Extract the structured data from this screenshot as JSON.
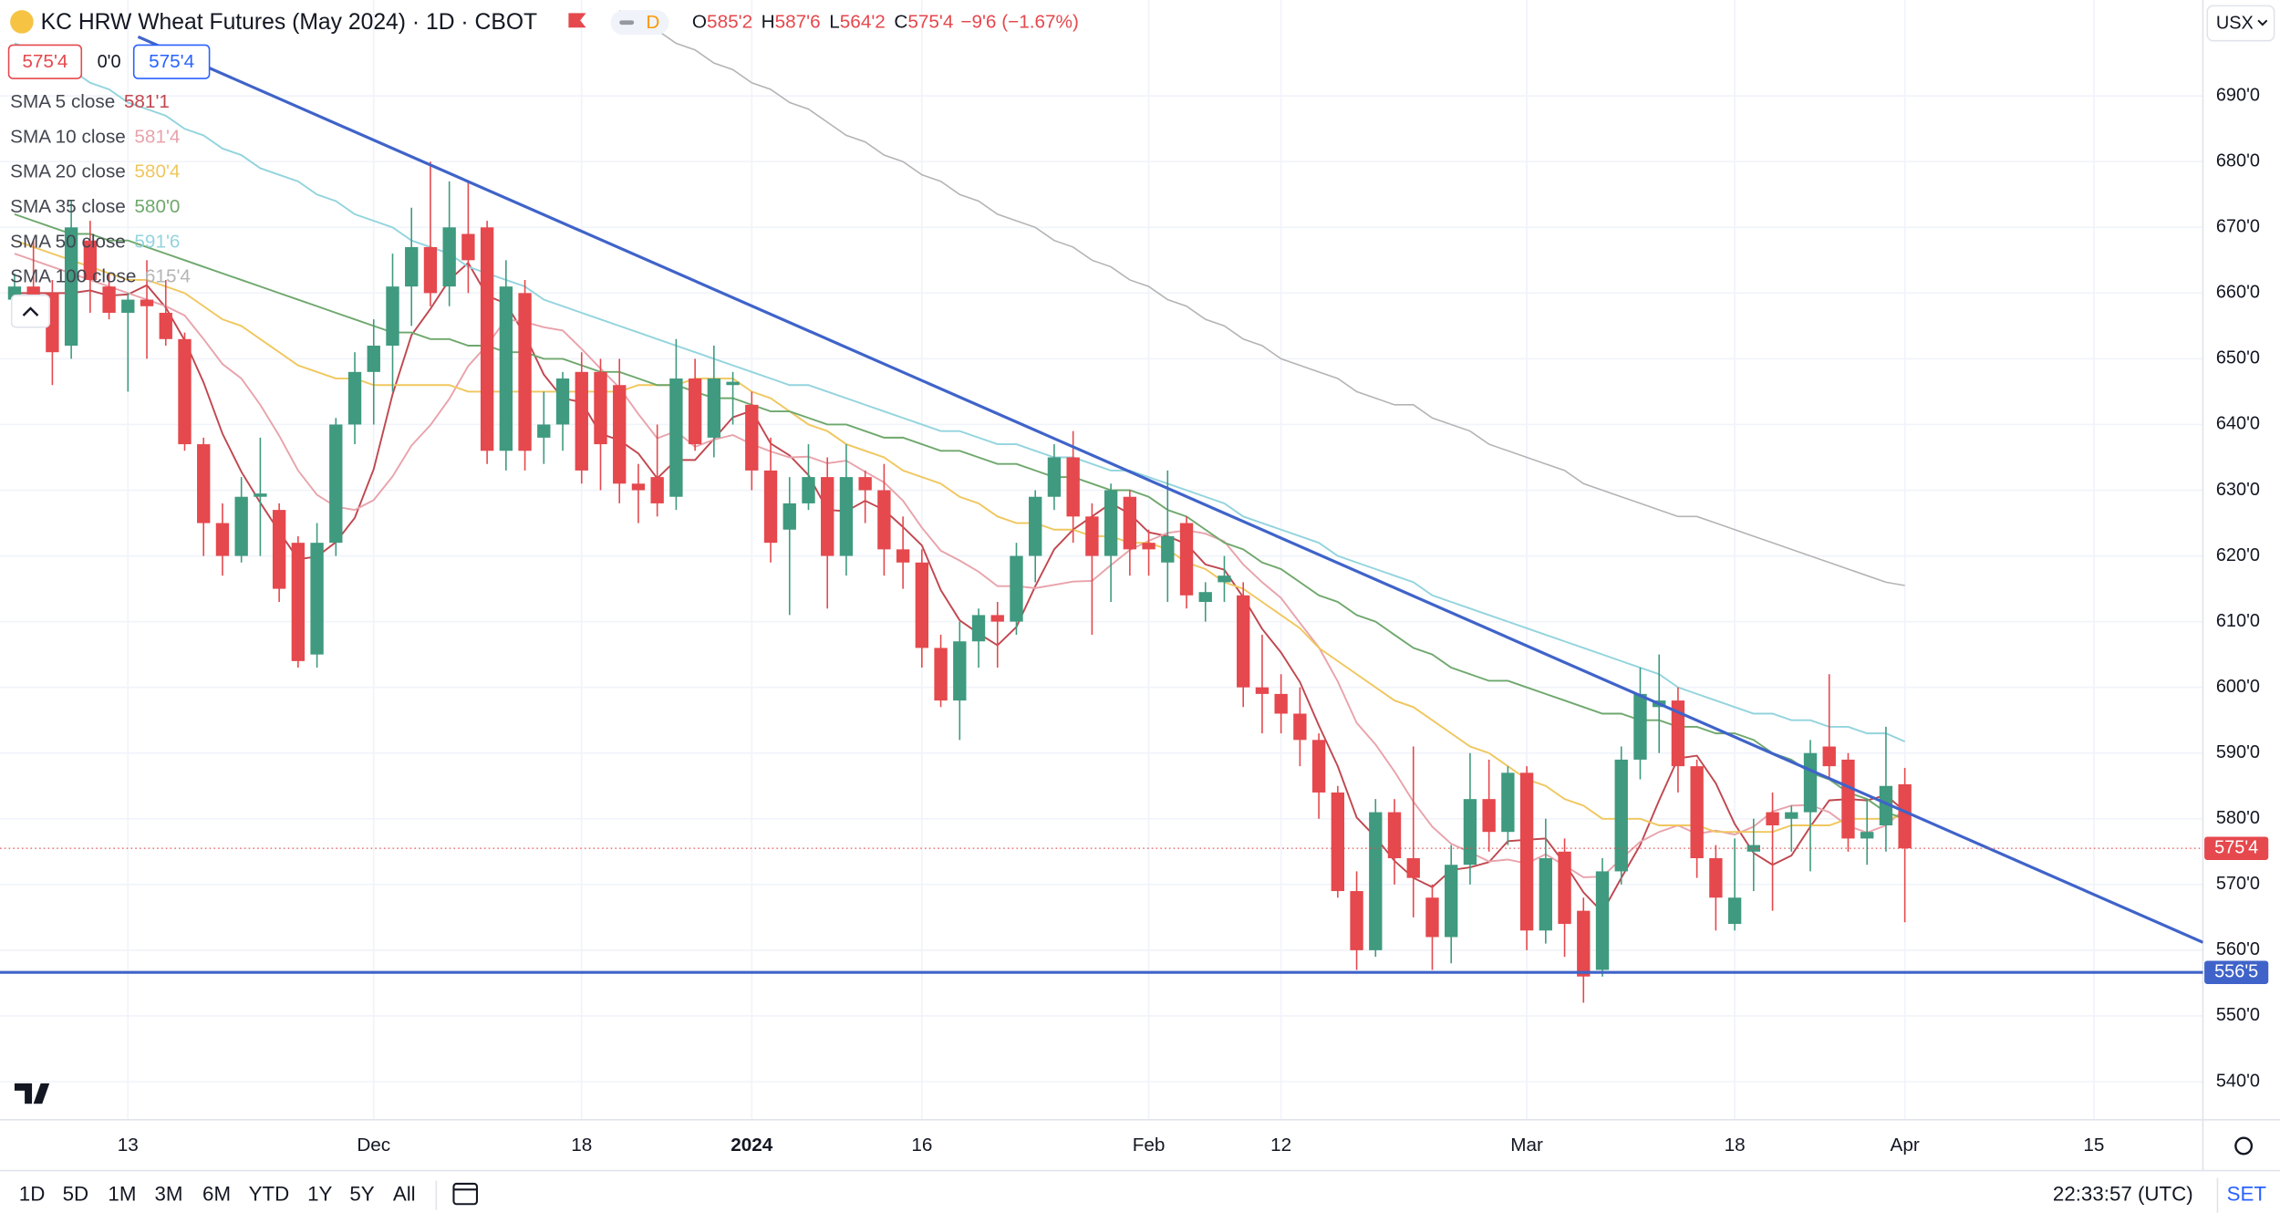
{
  "header": {
    "title": "KC HRW Wheat Futures (May 2024) · 1D · CBOT",
    "flag": "D",
    "ohlc": [
      {
        "key": "O",
        "value": "585'2"
      },
      {
        "key": "H",
        "value": "587'6"
      },
      {
        "key": "L",
        "value": "564'2"
      },
      {
        "key": "C",
        "value": "575'4"
      }
    ],
    "change": "−9'6 (−1.67%)",
    "boxes": [
      "575'4",
      "0'0",
      "575'4"
    ],
    "currency": "USX"
  },
  "toolbar": {
    "ranges": [
      "1D",
      "5D",
      "1M",
      "3M",
      "6M",
      "YTD",
      "1Y",
      "5Y",
      "All"
    ],
    "time": "22:33:57 (UTC)",
    "set": "SET"
  },
  "chart_data": {
    "type": "candlestick",
    "up_color": "#3f9a7f",
    "down_color": "#e5484d",
    "grid": true,
    "categories": [
      null,
      null,
      null,
      null,
      null,
      null,
      "13",
      null,
      null,
      null,
      null,
      null,
      null,
      null,
      null,
      null,
      null,
      null,
      null,
      "Dec",
      null,
      null,
      null,
      null,
      null,
      null,
      null,
      null,
      null,
      null,
      "18",
      null,
      null,
      null,
      null,
      null,
      null,
      null,
      null,
      "2024",
      null,
      null,
      null,
      null,
      null,
      null,
      null,
      null,
      "16",
      null,
      null,
      null,
      null,
      null,
      null,
      null,
      null,
      null,
      null,
      null,
      "Feb",
      null,
      null,
      null,
      null,
      null,
      null,
      "12",
      null,
      null,
      null,
      null,
      null,
      null,
      null,
      null,
      null,
      null,
      null,
      null,
      "Mar",
      null,
      null,
      null,
      null,
      null,
      null,
      null,
      null,
      null,
      null,
      "18",
      null,
      null,
      null,
      null,
      null,
      null,
      null,
      null,
      "Apr",
      null,
      null,
      null,
      null,
      null,
      null,
      null,
      null,
      null,
      "15"
    ],
    "open": [
      659,
      661,
      660,
      652,
      668,
      661,
      657,
      659,
      657,
      653,
      637,
      625,
      620,
      629,
      627,
      622,
      605,
      622,
      640,
      648,
      652,
      661,
      667,
      661,
      669,
      670,
      636,
      660,
      638,
      640,
      648,
      648,
      646,
      631,
      632,
      629,
      647,
      638,
      646,
      643,
      633,
      624,
      628,
      632,
      620,
      632,
      630,
      621,
      619,
      606,
      598,
      607,
      611,
      610,
      620,
      629,
      635,
      626,
      620,
      629,
      622,
      619,
      625,
      613,
      616,
      614,
      600,
      599,
      596,
      592,
      584,
      569,
      560,
      581,
      574,
      568,
      562,
      573,
      583,
      578,
      587,
      563,
      575,
      566,
      557,
      572,
      589,
      597,
      598,
      588,
      574,
      564,
      575,
      581,
      580,
      581,
      591,
      589,
      577,
      579,
      585.25,
      null,
      null,
      null,
      null,
      null,
      null,
      null,
      null,
      null,
      null
    ],
    "high": [
      663,
      668,
      662,
      674,
      671,
      663,
      660,
      665,
      662,
      654,
      638,
      628,
      632,
      638,
      628,
      623,
      625,
      641,
      651,
      656,
      666,
      673,
      680,
      677,
      677,
      671,
      665,
      662,
      645,
      648,
      651,
      650,
      650,
      634,
      640,
      653,
      650,
      652,
      648,
      645,
      638,
      632,
      637,
      635,
      637,
      633,
      634,
      626,
      621,
      608,
      610,
      612,
      613,
      622,
      630,
      637,
      639,
      628,
      631,
      630,
      624,
      633,
      626,
      616,
      620,
      616,
      608,
      602,
      600,
      593,
      585,
      572,
      583,
      583,
      591,
      570,
      576,
      590,
      589,
      588,
      588,
      580,
      577,
      568,
      574,
      591,
      603,
      605,
      600,
      589,
      576,
      577,
      580,
      584,
      582,
      592,
      602,
      590,
      583,
      594,
      587.75,
      null,
      null,
      null,
      null,
      null,
      null,
      null,
      null,
      null,
      null
    ],
    "low": [
      659,
      657,
      646,
      650,
      657,
      656,
      645,
      650,
      652,
      636,
      620,
      617,
      619,
      620,
      613,
      603,
      603,
      620,
      637,
      640,
      645,
      655,
      658,
      658,
      660,
      634,
      633,
      633,
      634,
      636,
      631,
      630,
      628,
      625,
      626,
      627,
      636,
      635,
      640,
      630,
      619,
      611,
      627,
      612,
      617,
      625,
      617,
      615,
      603,
      597,
      592,
      603,
      603,
      608,
      616,
      627,
      622,
      608,
      613,
      617,
      617,
      613,
      612,
      610,
      613,
      597,
      593,
      593,
      588,
      580,
      568,
      557,
      559,
      570,
      565,
      557,
      558,
      570,
      575,
      576,
      560,
      561,
      559,
      552,
      556,
      570,
      586,
      590,
      584,
      571,
      563,
      563,
      569,
      566,
      575,
      572,
      586,
      575,
      573,
      575,
      564.25,
      null,
      null,
      null,
      null,
      null,
      null,
      null,
      null,
      null,
      null
    ],
    "close": [
      661,
      658,
      651,
      670,
      662,
      657,
      659,
      658,
      653,
      637,
      625,
      620,
      629,
      629.5,
      615,
      604,
      622,
      640,
      648,
      652,
      661,
      667,
      660,
      670,
      665,
      636,
      661,
      636,
      640,
      647,
      633,
      637,
      631,
      630,
      628,
      647,
      637,
      647,
      646.5,
      633,
      622,
      628,
      632,
      620,
      632,
      630,
      621,
      619,
      606,
      598,
      607,
      611,
      610,
      620,
      629,
      635,
      626,
      620,
      630,
      621,
      621,
      623,
      614,
      614.5,
      617,
      600,
      599,
      596,
      592,
      584,
      569,
      560,
      581,
      574,
      571,
      562,
      573,
      583,
      578,
      587,
      563,
      574,
      564,
      556,
      572,
      589,
      599,
      598,
      588,
      574,
      568,
      568,
      576,
      579,
      581,
      590,
      588,
      577,
      578,
      585,
      575.5,
      null,
      null,
      null,
      null,
      null,
      null,
      null,
      null,
      null,
      null
    ],
    "series": [
      {
        "name": "SMA 5 close",
        "color": "#c0474f",
        "value_label": "581'1",
        "values": [
          660,
          660,
          660,
          660,
          660.4,
          659.6,
          659.8,
          661.2,
          657.8,
          652.8,
          646.4,
          638.6,
          632.8,
          628.1,
          623.7,
          619.5,
          619.9,
          622.1,
          625.8,
          633.2,
          644.6,
          653.6,
          657.6,
          662,
          664.6,
          659.6,
          658.4,
          653.6,
          647.6,
          644,
          643.4,
          638.6,
          637.6,
          635.6,
          631.8,
          634.6,
          634.6,
          637.8,
          641.1,
          642.1,
          637.1,
          635.3,
          632.3,
          627,
          626.8,
          628.4,
          627,
          624.4,
          621.6,
          614.8,
          610.2,
          608.2,
          606.4,
          609.2,
          615.4,
          621,
          624,
          626,
          628,
          626.4,
          623.6,
          623,
          621.8,
          618.7,
          617.9,
          613.7,
          608.9,
          605.3,
          600.8,
          594.2,
          588,
          580.2,
          577.2,
          573.6,
          571,
          569.6,
          572.2,
          572.6,
          573.4,
          576.6,
          576.8,
          577,
          573.2,
          568.8,
          565.8,
          571,
          576,
          582.8,
          589.2,
          589.6,
          585.4,
          579.2,
          574.8,
          573,
          574.4,
          578.8,
          582.8,
          583,
          582.8,
          583.6,
          581.125,
          null,
          null,
          null,
          null,
          null,
          null,
          null,
          null,
          null,
          null
        ]
      },
      {
        "name": "SMA 10 close",
        "color": "#e8a3ab",
        "value_label": "581'4",
        "values": [
          666,
          665,
          664,
          663,
          662,
          661,
          660,
          659,
          658,
          656.6,
          653,
          649.2,
          647,
          643,
          638.3,
          633,
          629.3,
          627.5,
          627,
          628.5,
          632.1,
          636.8,
          639.9,
          643.9,
          648.9,
          652.1,
          656,
          655.6,
          654.8,
          654.3,
          651.5,
          648.5,
          645.6,
          641.6,
          637.9,
          639,
          636.6,
          637.7,
          638.4,
          637,
          635.9,
          635,
          635.1,
          634.1,
          634.5,
          632.8,
          631.2,
          628.4,
          624.3,
          620.8,
          619.3,
          617.6,
          615.4,
          615.4,
          615.1,
          615.6,
          616.1,
          616.2,
          618.6,
          620.9,
          622.3,
          623.5,
          623.9,
          623.4,
          622.2,
          618.7,
          616,
          613.6,
          609.8,
          606.1,
          600.9,
          594.6,
          591.3,
          587.2,
          582.6,
          578.8,
          576.2,
          574.9,
          573.5,
          573.8,
          573.2,
          574.6,
          572.9,
          571.1,
          571.2,
          573.9,
          576.5,
          578,
          579,
          577.7,
          578.2,
          577.6,
          578.8,
          581.1,
          582,
          582.1,
          581,
          578.9,
          577.9,
          579,
          581.5,
          null,
          null,
          null,
          null,
          null,
          null,
          null,
          null,
          null,
          null
        ]
      },
      {
        "name": "SMA 20 close",
        "color": "#f0c75e",
        "value_label": "580'4",
        "values": [
          668,
          667,
          666,
          665,
          664,
          663,
          662,
          662,
          661,
          660,
          658,
          656,
          655,
          653,
          651,
          649,
          648,
          647,
          647,
          646,
          646,
          646,
          646,
          646,
          645,
          645,
          645,
          645,
          645,
          645,
          645,
          645,
          645,
          646,
          646,
          646,
          647,
          647,
          647,
          645,
          644,
          642,
          640,
          639,
          637,
          636,
          635,
          633,
          632,
          631,
          629,
          628,
          626,
          625,
          625,
          624,
          624,
          623,
          623,
          622,
          622,
          621,
          619,
          618,
          616,
          615,
          613,
          611,
          609,
          606,
          604,
          602,
          600,
          598,
          597,
          595,
          593,
          591,
          590,
          588,
          586,
          585,
          583,
          582,
          580,
          580,
          580,
          579,
          579,
          579,
          578,
          578,
          578,
          578,
          579,
          579,
          579,
          580,
          580,
          580,
          580.5,
          null,
          null,
          null,
          null,
          null,
          null,
          null,
          null,
          null,
          null
        ]
      },
      {
        "name": "SMA 35 close",
        "color": "#6fa86d",
        "value_label": "580'0",
        "values": [
          672,
          671,
          670,
          669,
          669,
          668,
          668,
          667,
          666,
          665,
          664,
          663,
          662,
          661,
          660,
          659,
          658,
          657,
          656,
          655,
          654,
          654,
          653,
          653,
          652,
          652,
          651,
          651,
          650,
          650,
          649,
          648,
          648,
          647,
          646,
          646,
          645,
          644,
          644,
          643,
          642,
          642,
          641,
          640,
          640,
          639,
          638,
          638,
          637,
          636,
          636,
          635,
          634,
          634,
          633,
          632,
          632,
          631,
          630,
          630,
          629,
          627,
          626,
          624,
          622,
          621,
          619,
          618,
          616,
          614,
          613,
          611,
          610,
          608,
          606,
          605,
          603,
          602,
          601,
          601,
          600,
          599,
          598,
          597,
          596,
          596,
          595,
          595,
          594,
          594,
          593,
          593,
          592,
          590,
          589,
          587,
          586,
          584,
          583,
          581,
          580,
          null,
          null,
          null,
          null,
          null,
          null,
          null,
          null,
          null,
          null
        ]
      },
      {
        "name": "SMA 50 close",
        "color": "#93d4dd",
        "value_label": "591'6",
        "values": [
          698,
          697,
          695,
          694,
          692,
          691,
          689,
          688,
          687,
          685,
          684,
          682,
          681,
          679,
          678,
          677,
          675,
          674,
          672,
          671,
          670,
          668,
          667,
          666,
          664,
          663,
          662,
          661,
          659,
          658,
          657,
          656,
          655,
          654,
          653,
          652,
          651,
          650,
          649,
          648,
          647,
          646,
          646,
          645,
          644,
          643,
          642,
          641,
          640,
          639,
          639,
          638,
          637,
          637,
          636,
          635,
          635,
          634,
          633,
          633,
          632,
          631,
          630,
          629,
          628,
          626,
          625,
          624,
          623,
          622,
          620,
          619,
          618,
          617,
          616,
          614,
          613,
          612,
          611,
          610,
          609,
          608,
          607,
          606,
          605,
          604,
          603,
          602,
          600,
          599,
          598,
          597,
          596,
          596,
          595,
          595,
          594,
          594,
          593,
          593,
          591.75,
          null,
          null,
          null,
          null,
          null,
          null,
          null,
          null,
          null,
          null
        ]
      },
      {
        "name": "SMA 100 close",
        "color": "#b4b4b4",
        "value_label": "615'4",
        "values": [
          null,
          null,
          null,
          null,
          null,
          null,
          null,
          null,
          null,
          null,
          null,
          null,
          null,
          null,
          null,
          null,
          null,
          null,
          null,
          null,
          null,
          null,
          null,
          null,
          null,
          null,
          null,
          null,
          null,
          null,
          null,
          null,
          703,
          701,
          700,
          698,
          697,
          695,
          694,
          692,
          691,
          689,
          688,
          686,
          684,
          683,
          681,
          680,
          678,
          677,
          675,
          674,
          672,
          671,
          670,
          668,
          667,
          665,
          664,
          662,
          661,
          659,
          658,
          656,
          655,
          653,
          652,
          650,
          649,
          648,
          647,
          645,
          644,
          643,
          643,
          641,
          640,
          639,
          637,
          636,
          635,
          634,
          633,
          631,
          630,
          629,
          628,
          627,
          626,
          626,
          625,
          624,
          623,
          622,
          621,
          620,
          619,
          618,
          617,
          616,
          615.5,
          null,
          null,
          null,
          null,
          null,
          null,
          null,
          null,
          null,
          null
        ]
      }
    ],
    "ylim": [
      534.2,
      704.6
    ],
    "yticks": [
      {
        "value": 540,
        "label": "540'0"
      },
      {
        "value": 550,
        "label": "550'0"
      },
      {
        "value": 560,
        "label": "560'0"
      },
      {
        "value": 570,
        "label": "570'0"
      },
      {
        "value": 580,
        "label": "580'0"
      },
      {
        "value": 590,
        "label": "590'0"
      },
      {
        "value": 600,
        "label": "600'0"
      },
      {
        "value": 610,
        "label": "610'0"
      },
      {
        "value": 620,
        "label": "620'0"
      },
      {
        "value": 630,
        "label": "630'0"
      },
      {
        "value": 640,
        "label": "640'0"
      },
      {
        "value": 650,
        "label": "650'0"
      },
      {
        "value": 660,
        "label": "660'0"
      },
      {
        "value": 670,
        "label": "670'0"
      },
      {
        "value": 680,
        "label": "680'0"
      },
      {
        "value": 690,
        "label": "690'0"
      }
    ],
    "price_lines": [
      {
        "value": 575.5,
        "label": "575'4",
        "color": "#e5484d",
        "style": "dotted"
      },
      {
        "value": 556.625,
        "label": "556'5",
        "color": "#3f63c9",
        "style": "solid"
      }
    ],
    "trend_line": {
      "values": [
        699,
        561.2
      ],
      "color": "#3f63c9"
    }
  }
}
